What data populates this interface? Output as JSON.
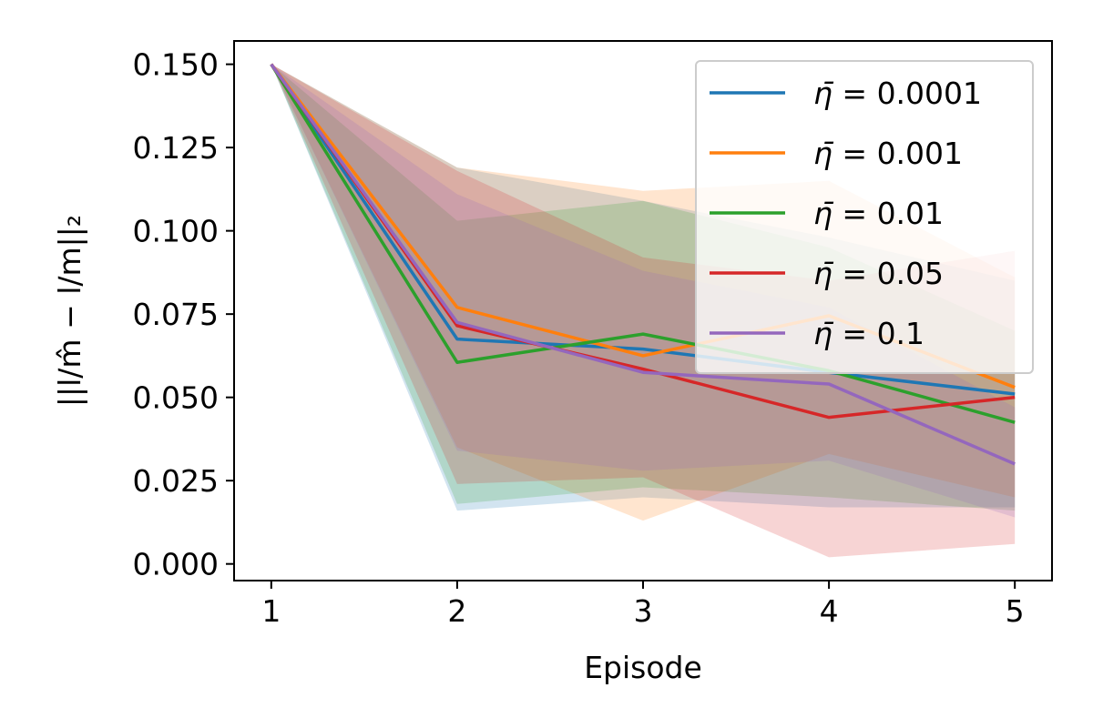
{
  "chart_data": {
    "type": "line",
    "xlabel": "Episode",
    "ylabel": "||l/m̂ − l/m||₂",
    "x": [
      1,
      2,
      3,
      4,
      5
    ],
    "xticks": [
      "1",
      "2",
      "3",
      "4",
      "5"
    ],
    "yticks": [
      "0.000",
      "0.025",
      "0.050",
      "0.075",
      "0.100",
      "0.125",
      "0.150"
    ],
    "ylim": [
      -0.005,
      0.157
    ],
    "xlim": [
      0.8,
      5.2
    ],
    "grid": false,
    "legend_position": "top-right",
    "series": [
      {
        "name": "η̄ = 0.0001",
        "legend_value": "0.0001",
        "color": "#1f77b4",
        "values": [
          0.15,
          0.0675,
          0.0645,
          0.0575,
          0.051
        ],
        "lower": [
          0.15,
          0.016,
          0.02,
          0.017,
          0.017
        ],
        "upper": [
          0.15,
          0.119,
          0.109,
          0.098,
          0.085
        ]
      },
      {
        "name": "η̄ = 0.001",
        "legend_value": "0.001",
        "color": "#ff7f0e",
        "values": [
          0.15,
          0.077,
          0.0625,
          0.0745,
          0.053
        ],
        "lower": [
          0.15,
          0.035,
          0.013,
          0.033,
          0.02
        ],
        "upper": [
          0.15,
          0.119,
          0.112,
          0.115,
          0.086
        ]
      },
      {
        "name": "η̄ = 0.01",
        "legend_value": "0.01",
        "color": "#2ca02c",
        "values": [
          0.15,
          0.0605,
          0.069,
          0.058,
          0.0425
        ],
        "lower": [
          0.15,
          0.018,
          0.023,
          0.02,
          0.016
        ],
        "upper": [
          0.15,
          0.103,
          0.109,
          0.095,
          0.07
        ]
      },
      {
        "name": "η̄ = 0.05",
        "legend_value": "0.05",
        "color": "#d62728",
        "values": [
          0.15,
          0.0715,
          0.0585,
          0.044,
          0.05
        ],
        "lower": [
          0.15,
          0.024,
          0.026,
          0.002,
          0.006
        ],
        "upper": [
          0.15,
          0.118,
          0.092,
          0.085,
          0.094
        ]
      },
      {
        "name": "η̄ = 0.1",
        "legend_value": "0.1",
        "color": "#9467bd",
        "values": [
          0.15,
          0.0725,
          0.0575,
          0.054,
          0.03
        ],
        "lower": [
          0.15,
          0.034,
          0.028,
          0.031,
          0.014
        ],
        "upper": [
          0.15,
          0.111,
          0.088,
          0.077,
          0.047
        ]
      }
    ]
  }
}
